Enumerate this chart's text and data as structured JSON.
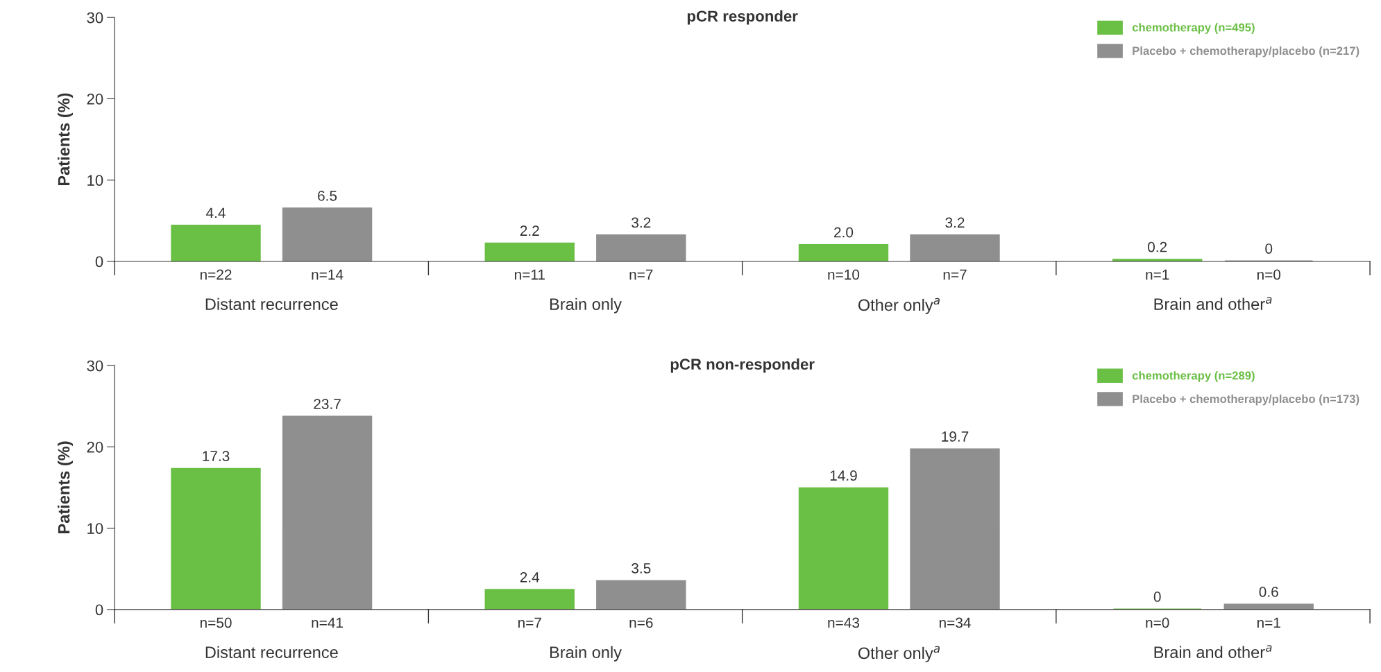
{
  "chart_data": [
    {
      "type": "bar",
      "title": "pCR responder",
      "ylabel": "Patients (%)",
      "categories": [
        "Distant recurrence",
        "Brain only",
        "Other only$^{a}$",
        "Brain and other$^{a}$"
      ],
      "ylim": [
        0,
        30
      ],
      "yticks": [
        0,
        10,
        20,
        30
      ],
      "grid": false,
      "legend": "top right",
      "series": [
        {
          "name": "chemotherapy (n=495)",
          "color": "#6abf45",
          "values": [
            4.4,
            2.2,
            2.0,
            0.2
          ],
          "value_labels": [
            "4.4",
            "2.2",
            "2.0",
            "0.2"
          ]
        },
        {
          "name": "Placebo + chemotherapy/placebo (n=217)",
          "color": "#8f8f8f",
          "values": [
            6.5,
            3.2,
            3.2,
            0
          ],
          "value_labels": [
            "6.5",
            "3.2",
            "3.2",
            "0"
          ]
        }
      ],
      "annotations": [
        "n=22",
        "n=14",
        "n=11",
        "n=7",
        "n=10",
        "n=7",
        "n=1",
        "n=0"
      ]
    },
    {
      "type": "bar",
      "title": "pCR non-responder",
      "ylabel": "Patients (%)",
      "categories": [
        "Distant recurrence",
        "Brain only",
        "Other only$^{a}$",
        "Brain and other$^{a}$"
      ],
      "ylim": [
        0,
        30
      ],
      "yticks": [
        0,
        10,
        20,
        30
      ],
      "grid": false,
      "legend": "top right",
      "series": [
        {
          "name": "chemotherapy (n=289)",
          "color": "#6abf45",
          "values": [
            17.3,
            2.4,
            14.9,
            0
          ],
          "value_labels": [
            "17.3",
            "2.4",
            "14.9",
            "0"
          ]
        },
        {
          "name": "Placebo + chemotherapy/placebo (n=173)",
          "color": "#8f8f8f",
          "values": [
            23.7,
            3.5,
            19.7,
            0.6
          ],
          "value_labels": [
            "23.7",
            "3.5",
            "19.7",
            "0.6"
          ]
        }
      ],
      "annotations": [
        "n=50",
        "n=41",
        "n=7",
        "n=6",
        "n=43",
        "n=34",
        "n=0",
        "n=1"
      ]
    }
  ]
}
